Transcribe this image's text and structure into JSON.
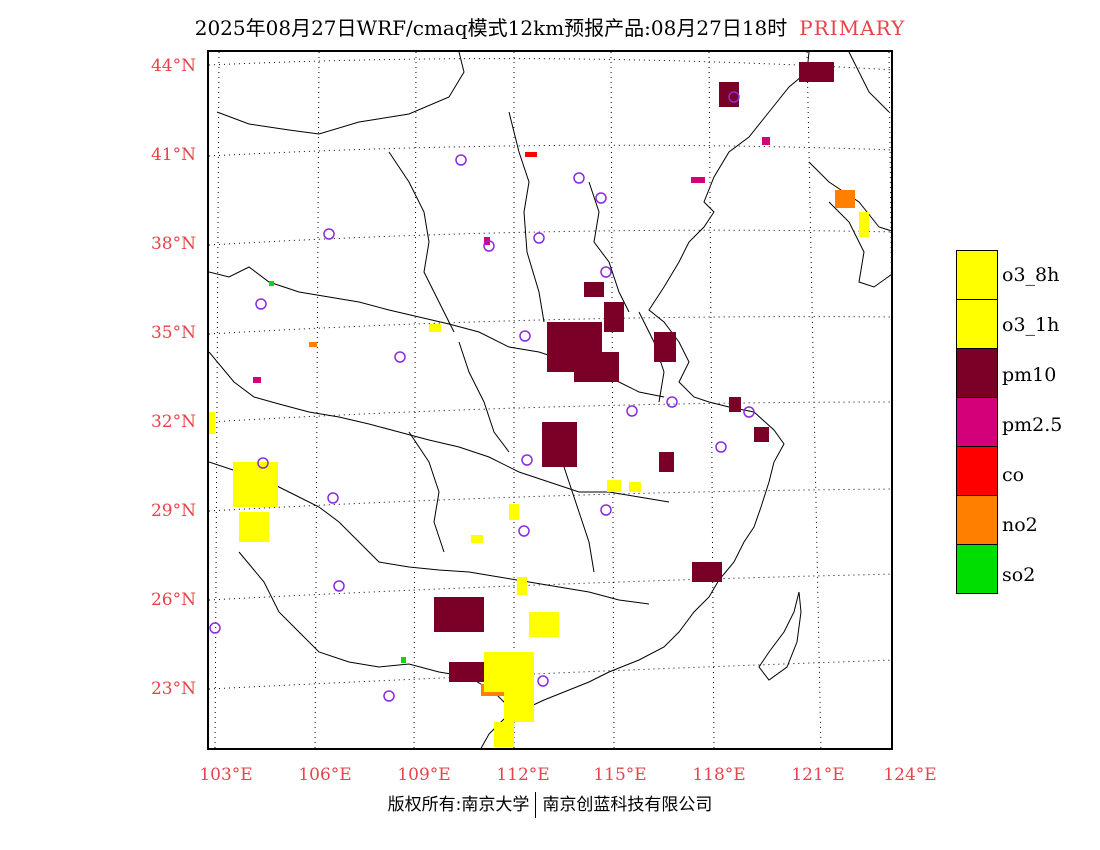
{
  "title": {
    "text": "2025年08月27日WRF/cmaq模式12km预报产品:08月27日18时",
    "tag": "PRIMARY"
  },
  "axes": {
    "lat_labels": [
      "44°N",
      "41°N",
      "38°N",
      "35°N",
      "32°N",
      "29°N",
      "26°N",
      "23°N"
    ],
    "lon_labels": [
      "103°E",
      "106°E",
      "109°E",
      "112°E",
      "115°E",
      "118°E",
      "121°E",
      "124°E"
    ]
  },
  "legend": {
    "items": [
      {
        "label": "o3_8h",
        "color": "#ffff00"
      },
      {
        "label": "o3_1h",
        "color": "#ffff00"
      },
      {
        "label": "pm10",
        "color": "#7a0028"
      },
      {
        "label": "pm2.5",
        "color": "#d4007a"
      },
      {
        "label": "co",
        "color": "#ff0000"
      },
      {
        "label": "no2",
        "color": "#ff7f00"
      },
      {
        "label": "so2",
        "color": "#00dd00"
      }
    ]
  },
  "copyright": {
    "left": "版权所有:南京大学",
    "right": "南京创蓝科技有限公司"
  },
  "colors": {
    "label_red": "#e8434a",
    "station_ring": "#8a2be2"
  }
}
